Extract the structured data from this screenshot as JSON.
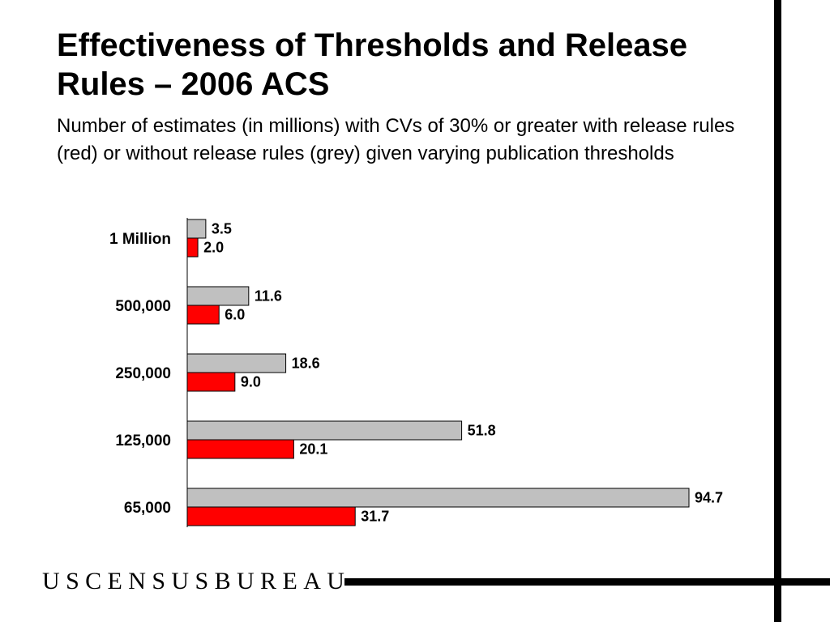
{
  "title": "Effectiveness of Thresholds and Release Rules – 2006 ACS",
  "subtitle": "Number of estimates (in millions) with CVs of 30% or greater with release rules (red) or without release rules (grey) given varying publication thresholds",
  "footer": {
    "logo_text": "USCENSUSBUREAU"
  },
  "colors": {
    "without_release_rules": "#c0c0c0",
    "with_release_rules": "#ff0000",
    "bar_outline": "#000000"
  },
  "chart_data": {
    "type": "bar",
    "orientation": "horizontal",
    "categories": [
      "1 Million",
      "500,000",
      "250,000",
      "125,000",
      "65,000"
    ],
    "series": [
      {
        "values": [
          3.5,
          11.6,
          18.6,
          51.8,
          94.7
        ],
        "color": "#c0c0c0"
      },
      {
        "values": [
          2.0,
          6.0,
          9.0,
          20.1,
          31.7
        ],
        "color": "#ff0000"
      }
    ],
    "value_labels": [
      [
        "3.5",
        "11.6",
        "18.6",
        "51.8",
        "94.7"
      ],
      [
        "2.0",
        "6.0",
        "9.0",
        "20.1",
        "31.7"
      ]
    ],
    "title": "",
    "xlabel": "",
    "ylabel": "",
    "xlim": [
      0,
      100
    ],
    "grid": false,
    "legend": "none"
  }
}
